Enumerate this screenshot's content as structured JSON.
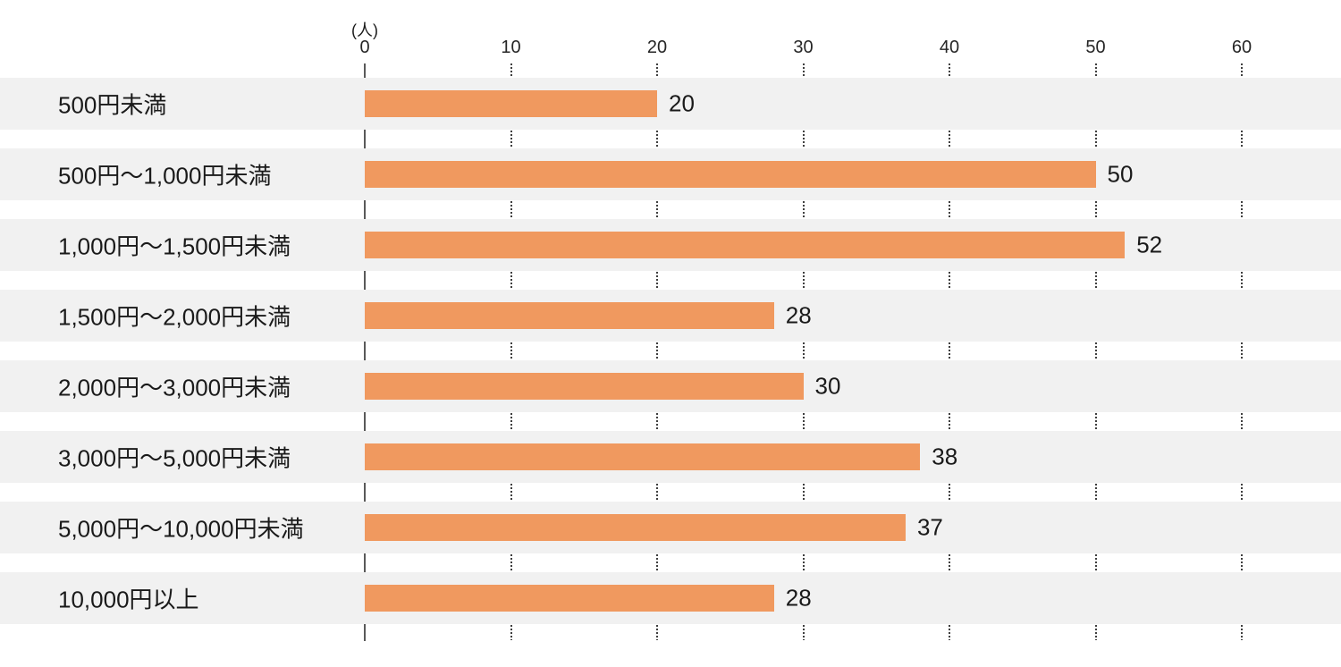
{
  "chart_data": {
    "type": "bar",
    "orientation": "horizontal",
    "title": "",
    "unit_label": "(人)",
    "categories": [
      "500円未満",
      "500円〜1,000円未満",
      "1,000円〜1,500円未満",
      "1,500円〜2,000円未満",
      "2,000円〜3,000円未満",
      "3,000円〜5,000円未満",
      "5,000円〜10,000円未満",
      "10,000円以上"
    ],
    "values": [
      20,
      50,
      52,
      28,
      30,
      38,
      37,
      28
    ],
    "x_ticks": [
      0,
      10,
      20,
      30,
      40,
      50,
      60
    ],
    "xlim": [
      0,
      66
    ],
    "xlabel": "",
    "ylabel": "",
    "legend_position": "none",
    "grid": "vertical dotted gridlines at each tick, drawn only in gaps between row bands",
    "colors": {
      "bar": "#F0995F",
      "row_background": "#F1F1F1",
      "axis_line": "#595959",
      "grid_dots": "#3F3F3F",
      "text": "#1A1A1A"
    }
  }
}
